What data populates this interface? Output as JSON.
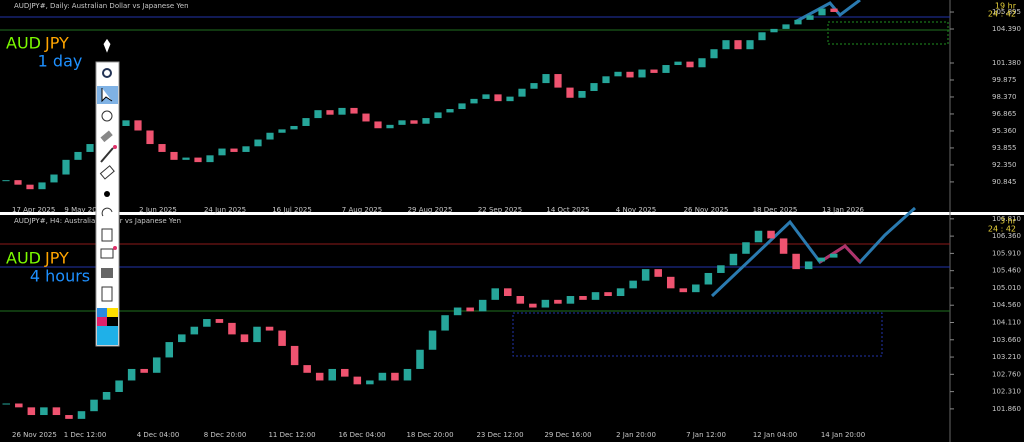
{
  "panels": [
    {
      "header": "AUDJPY#, Daily:  Australian Dollar vs Japanese Yen",
      "base": "AUD",
      "quote": "JPY",
      "period": "1 day",
      "timer": [
        "19 hr",
        "24 : 42"
      ],
      "ylim": [
        88.8,
        106.96
      ],
      "yticks": [
        {
          "value": 105.895,
          "label": "105.895"
        },
        {
          "value": 104.39,
          "label": "104.390"
        },
        {
          "value": 101.38,
          "label": "101.380"
        },
        {
          "value": 99.875,
          "label": "99.875"
        },
        {
          "value": 98.37,
          "label": "98.370"
        },
        {
          "value": 96.865,
          "label": "96.865"
        },
        {
          "value": 95.36,
          "label": "95.360"
        },
        {
          "value": 93.855,
          "label": "93.855"
        },
        {
          "value": 92.35,
          "label": "92.350"
        },
        {
          "value": 90.845,
          "label": "90.845"
        }
      ],
      "dates": [
        "17 Apr 2025",
        "9 May 2025",
        "2 Jun 2025",
        "24 Jun 2025",
        "16 Jul 2025",
        "7 Aug 2025",
        "29 Aug 2025",
        "22 Sep 2025",
        "14 Oct 2025",
        "4 Nov 2025",
        "26 Nov 2025",
        "18 Dec 2025",
        "13 Jan 2026"
      ],
      "closes": [
        91.0,
        90.6,
        90.2,
        90.8,
        91.5,
        92.8,
        93.5,
        94.2,
        95.0,
        95.8,
        96.3,
        95.4,
        94.2,
        93.5,
        92.8,
        93.0,
        92.6,
        93.2,
        93.8,
        93.5,
        94.0,
        94.6,
        95.2,
        95.5,
        95.8,
        96.5,
        97.2,
        96.8,
        97.4,
        96.9,
        96.2,
        95.6,
        95.9,
        96.3,
        96.0,
        96.5,
        97.0,
        97.3,
        97.8,
        98.2,
        98.6,
        98.0,
        98.4,
        99.1,
        99.6,
        100.4,
        99.2,
        98.3,
        98.9,
        99.6,
        100.2,
        100.6,
        100.1,
        100.8,
        100.5,
        101.2,
        101.5,
        101.0,
        101.8,
        102.6,
        103.4,
        102.6,
        103.4,
        104.1,
        104.4,
        104.8,
        105.2,
        105.6,
        106.2,
        105.9
      ]
    },
    {
      "header": "AUDJPY#, H4:  Australian Dollar vs Japanese Yen",
      "base": "AUD",
      "quote": "JPY",
      "period": "4 hours",
      "timer": [
        "3 hr",
        "24 : 42"
      ],
      "ylim": [
        101.31,
        106.91
      ],
      "yticks": [
        {
          "value": 106.81,
          "label": "106.810"
        },
        {
          "value": 106.36,
          "label": "106.360"
        },
        {
          "value": 105.91,
          "label": "105.910"
        },
        {
          "value": 105.46,
          "label": "105.460"
        },
        {
          "value": 105.01,
          "label": "105.010"
        },
        {
          "value": 104.56,
          "label": "104.560"
        },
        {
          "value": 104.11,
          "label": "104.110"
        },
        {
          "value": 103.66,
          "label": "103.660"
        },
        {
          "value": 103.21,
          "label": "103.210"
        },
        {
          "value": 102.76,
          "label": "102.760"
        },
        {
          "value": 102.31,
          "label": "102.310"
        },
        {
          "value": 101.86,
          "label": "101.860"
        }
      ],
      "dates": [
        "26 Nov 2025",
        "1 Dec 12:00",
        "4 Dec 04:00",
        "8 Dec 20:00",
        "11 Dec 12:00",
        "16 Dec 04:00",
        "18 Dec 20:00",
        "23 Dec 12:00",
        "29 Dec 16:00",
        "2 Jan 20:00",
        "7 Jan 12:00",
        "12 Jan 04:00",
        "14 Jan 20:00"
      ],
      "closes": [
        102.0,
        101.9,
        101.7,
        101.9,
        101.7,
        101.6,
        101.8,
        102.1,
        102.3,
        102.6,
        102.9,
        102.8,
        103.2,
        103.6,
        103.8,
        104.0,
        104.2,
        104.1,
        103.8,
        103.6,
        104.0,
        103.9,
        103.5,
        103.0,
        102.8,
        102.6,
        102.9,
        102.7,
        102.5,
        102.6,
        102.8,
        102.6,
        102.9,
        103.4,
        103.9,
        104.3,
        104.5,
        104.4,
        104.7,
        105.0,
        104.8,
        104.6,
        104.5,
        104.7,
        104.6,
        104.8,
        104.7,
        104.9,
        104.8,
        105.0,
        105.2,
        105.5,
        105.3,
        105.0,
        104.9,
        105.1,
        105.4,
        105.6,
        105.9,
        106.2,
        106.5,
        106.3,
        105.9,
        105.5,
        105.7,
        105.8,
        105.9
      ]
    }
  ]
}
